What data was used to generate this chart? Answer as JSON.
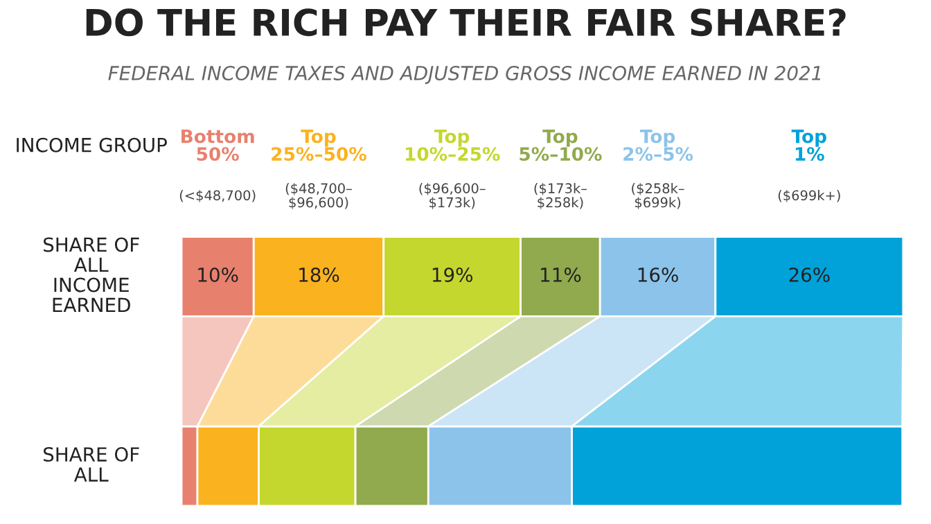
{
  "chart_data": {
    "type": "bar",
    "orientation": "horizontal",
    "stacked": true,
    "title": "DO THE RICH PAY THEIR FAIR SHARE?",
    "subtitle": "FEDERAL INCOME TAXES AND ADJUSTED GROSS INCOME EARNED IN 2021",
    "legend_title": "INCOME GROUP",
    "categories": [
      "SHARE OF ALL INCOME EARNED",
      "SHARE OF ALL"
    ],
    "series": [
      {
        "name": "Bottom 50%",
        "color": "#e8806e",
        "values": [
          10,
          2.2
        ],
        "value_labels": [
          "10%",
          null
        ]
      },
      {
        "name": "Top 25%–50%",
        "color": "#fbb21f",
        "values": [
          18,
          8.5
        ],
        "value_labels": [
          "18%",
          null
        ]
      },
      {
        "name": "Top 10%–25%",
        "color": "#c4d72e",
        "values": [
          19,
          13.4
        ],
        "value_labels": [
          "19%",
          null
        ]
      },
      {
        "name": "Top 5%–10%",
        "color": "#91aa4d",
        "values": [
          11,
          10.1
        ],
        "value_labels": [
          "11%",
          null
        ]
      },
      {
        "name": "Top 2%–5%",
        "color": "#8cc3ea",
        "values": [
          16,
          19.9
        ],
        "value_labels": [
          "16%",
          null
        ]
      },
      {
        "name": "Top 1%",
        "color": "#00a2d9",
        "values": [
          26,
          45.8
        ],
        "value_labels": [
          "26%",
          null
        ]
      }
    ],
    "annotations": [
      "(<$48,700)",
      "($48,700–$96,600)",
      "($96,600–$173k)",
      "($173k–$258k)",
      "($258k–$699k)",
      "($699k+)"
    ],
    "legend": "top"
  }
}
